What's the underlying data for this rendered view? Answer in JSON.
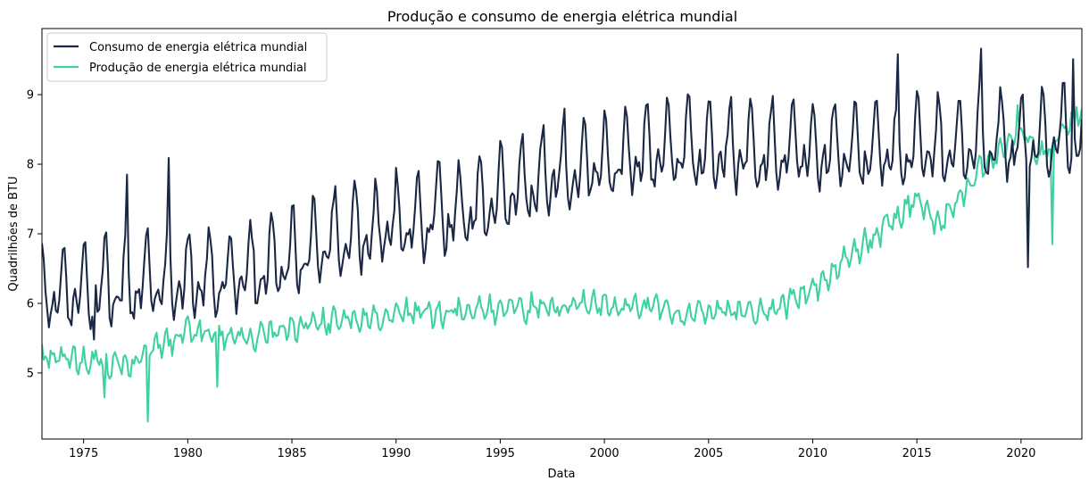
{
  "chart_data": {
    "type": "line",
    "title": "Produção e consumo de energia elétrica mundial",
    "xlabel": "Data",
    "ylabel": "Quadrilhões de BTU",
    "xlim": [
      1973.0,
      2022.92
    ],
    "ylim": [
      4.05,
      9.95
    ],
    "x_ticks": [
      "1975",
      "1980",
      "1985",
      "1990",
      "1995",
      "2000",
      "2005",
      "2010",
      "2015",
      "2020"
    ],
    "y_ticks": [
      "5",
      "6",
      "7",
      "8",
      "9"
    ],
    "legend_position": "top-left",
    "frequency": "monthly",
    "x_start": "1973-01",
    "series": [
      {
        "name": "Consumo de energia elétrica mundial",
        "color": "#1b2845",
        "trend_points": [
          [
            1973.0,
            6.1
          ],
          [
            1978.0,
            6.3
          ],
          [
            1983.0,
            6.4
          ],
          [
            1988.0,
            7.0
          ],
          [
            1993.0,
            7.3
          ],
          [
            1998.0,
            7.9
          ],
          [
            2003.0,
            8.2
          ],
          [
            2008.0,
            8.2
          ],
          [
            2013.0,
            8.2
          ],
          [
            2018.0,
            8.3
          ],
          [
            2022.92,
            8.4
          ]
        ],
        "seasonal_amplitude": 0.75,
        "noise": 0.15,
        "peaks": [
          [
            1977.08,
            7.85
          ],
          [
            1979.08,
            8.09
          ],
          [
            1998.08,
            8.8
          ],
          [
            2014.08,
            9.58
          ],
          [
            2018.08,
            9.66
          ],
          [
            2022.5,
            9.51
          ]
        ],
        "dips": [
          [
            1975.5,
            5.48
          ],
          [
            2020.3,
            6.52
          ]
        ]
      },
      {
        "name": "Produção de energia elétrica mundial",
        "color": "#3fd19f",
        "trend_points": [
          [
            1973.0,
            5.25
          ],
          [
            1977.0,
            5.1
          ],
          [
            1980.0,
            5.6
          ],
          [
            1983.0,
            5.5
          ],
          [
            1986.0,
            5.7
          ],
          [
            1990.0,
            5.85
          ],
          [
            1995.0,
            5.9
          ],
          [
            2000.0,
            6.0
          ],
          [
            2004.0,
            5.85
          ],
          [
            2008.0,
            5.9
          ],
          [
            2010.0,
            6.2
          ],
          [
            2012.0,
            6.75
          ],
          [
            2014.0,
            7.2
          ],
          [
            2015.0,
            7.5
          ],
          [
            2016.0,
            7.1
          ],
          [
            2018.0,
            7.9
          ],
          [
            2020.0,
            8.5
          ],
          [
            2021.0,
            8.1
          ],
          [
            2022.92,
            8.75
          ]
        ],
        "seasonal_amplitude": 0.12,
        "noise": 0.12,
        "peaks": [
          [
            2019.8,
            8.85
          ],
          [
            2022.7,
            8.82
          ]
        ],
        "dips": [
          [
            1976.0,
            4.65
          ],
          [
            1978.1,
            4.3
          ],
          [
            1981.4,
            4.8
          ],
          [
            2021.5,
            6.85
          ]
        ]
      }
    ]
  }
}
